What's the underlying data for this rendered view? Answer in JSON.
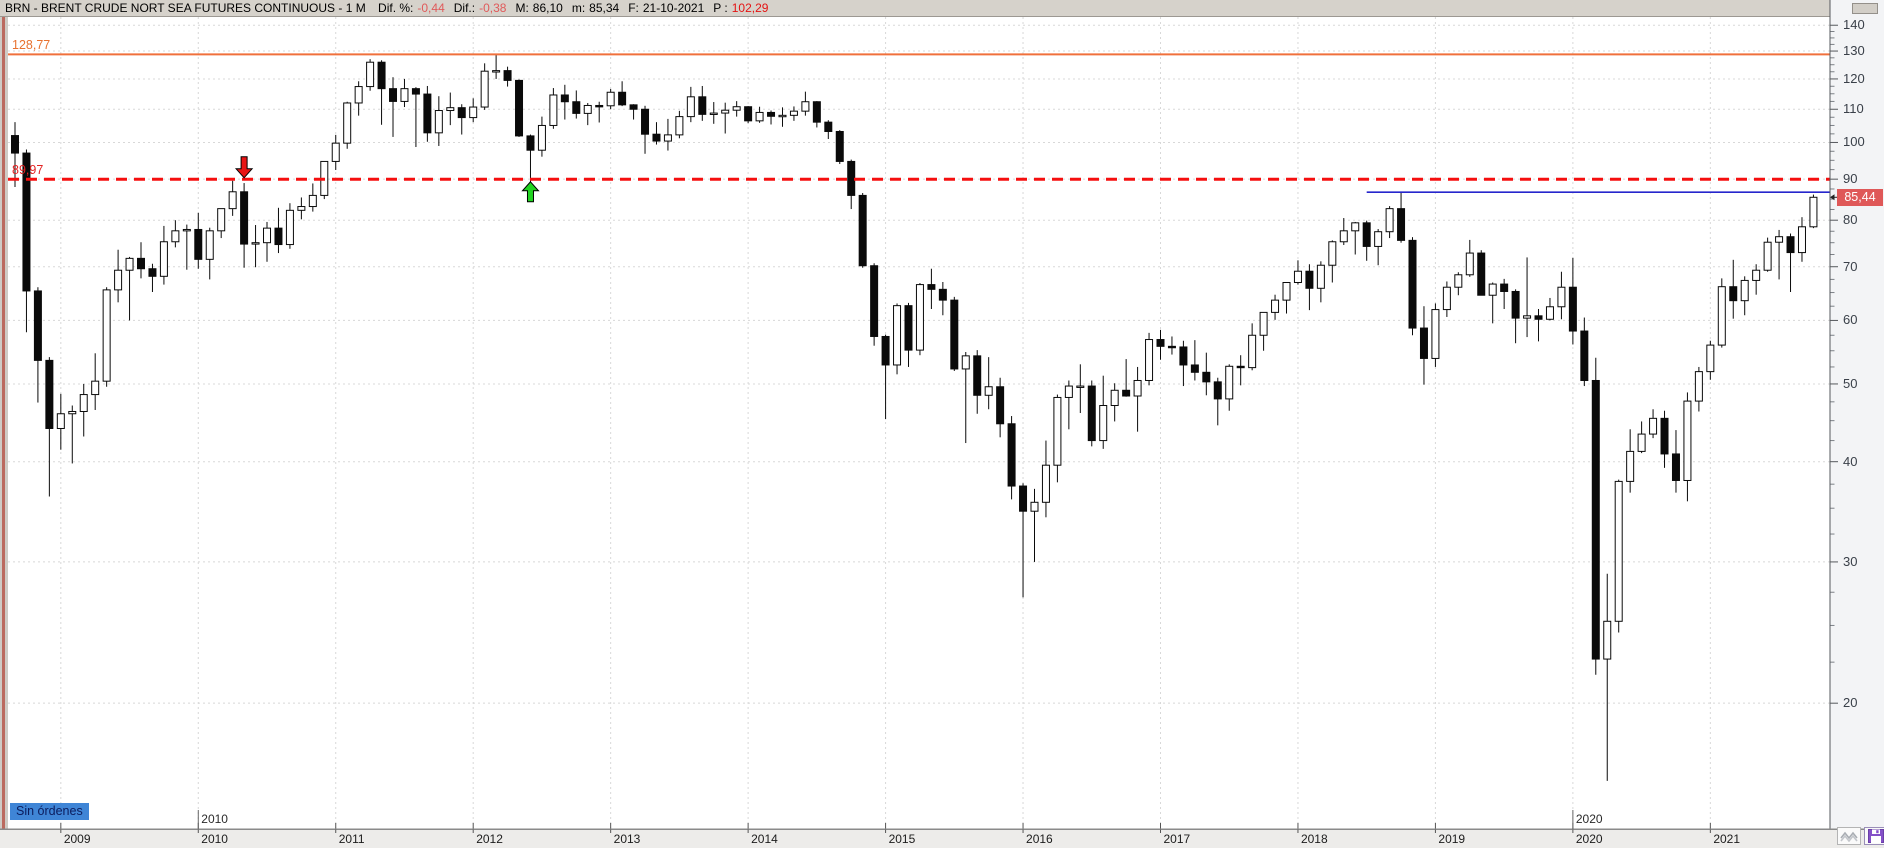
{
  "title_bar": {
    "title": "BRN - BRENT CRUDE NORT SEA FUTURES CONTINUOUS - 1 M",
    "segments": [
      {
        "label": "Dif. %:",
        "value": "-0,44",
        "tone": "red-soft"
      },
      {
        "label": "Dif.:",
        "value": "-0,38",
        "tone": "red-soft"
      },
      {
        "label": "M:",
        "value": "86,10",
        "tone": "plain"
      },
      {
        "label": "m:",
        "value": "85,34",
        "tone": "plain"
      },
      {
        "label": "F:",
        "value": "21-10-2021",
        "tone": "plain"
      },
      {
        "label": "P :",
        "value": "102,29",
        "tone": "red-strong"
      }
    ]
  },
  "status": {
    "no_orders": "Sin órdenes"
  },
  "price_badge": {
    "text": "85,44",
    "value": 85.44,
    "bg": "#df5858"
  },
  "y_axis": {
    "major_ticks": [
      140,
      130,
      120,
      110,
      100,
      90,
      80,
      70,
      60,
      50,
      40,
      30,
      20
    ],
    "minor_step": 2.5,
    "scale": "log"
  },
  "x_axis": {
    "years": [
      2009,
      2010,
      2011,
      2012,
      2013,
      2014,
      2015,
      2016,
      2017,
      2018,
      2019,
      2020,
      2021
    ]
  },
  "decade_labels": [
    {
      "text": "2010",
      "year": 2010
    },
    {
      "text": "2020",
      "year": 2020
    }
  ],
  "chart_data": {
    "type": "candlestick",
    "instrument": "BRN - Brent Crude North Sea Futures Continuous",
    "timeframe": "1 month",
    "ylim": [
      14,
      143
    ],
    "grid": true,
    "up_color": "#ffffff",
    "down_color": "#0a0a0a",
    "levels": [
      {
        "price": 128.77,
        "label": "128,77",
        "style": "solid",
        "color": "#f0703c",
        "from": "start"
      },
      {
        "price": 89.97,
        "label": "89,97",
        "style": "dashed",
        "color": "#f50f0f",
        "from": "start"
      },
      {
        "price": 86.7,
        "label": "",
        "style": "solid",
        "color": "#2626cc",
        "from": "2018-07"
      }
    ],
    "markers": [
      {
        "kind": "sell",
        "month": "2010-05",
        "color": "#e81414"
      },
      {
        "kind": "buy",
        "month": "2012-06",
        "color": "#21d421"
      }
    ],
    "last_price": 85.44,
    "candles": [
      [
        "2008-09",
        102,
        106,
        88,
        97
      ],
      [
        "2008-10",
        97,
        98,
        58,
        65.3
      ],
      [
        "2008-11",
        65.3,
        66,
        47.4,
        53.5
      ],
      [
        "2008-12",
        53.5,
        54,
        36.2,
        44
      ],
      [
        "2009-01",
        44,
        48.6,
        41.4,
        45.9
      ],
      [
        "2009-02",
        45.9,
        47,
        39.8,
        46.2
      ],
      [
        "2009-03",
        46.2,
        50,
        43,
        48.5
      ],
      [
        "2009-04",
        48.5,
        54.6,
        46.4,
        50.4
      ],
      [
        "2009-05",
        50.4,
        66,
        49.6,
        65.5
      ],
      [
        "2009-06",
        65.5,
        73.5,
        63.2,
        69.3
      ],
      [
        "2009-07",
        69.3,
        72,
        60,
        71.7
      ],
      [
        "2009-08",
        71.7,
        75.1,
        67.7,
        69.6
      ],
      [
        "2009-09",
        69.6,
        70.6,
        65.1,
        68.1
      ],
      [
        "2009-10",
        68.1,
        78.7,
        66.5,
        75.2
      ],
      [
        "2009-11",
        75.2,
        80,
        74,
        77.6
      ],
      [
        "2009-12",
        77.6,
        79,
        69.4,
        77.9
      ],
      [
        "2010-01",
        77.9,
        81.7,
        69.6,
        71.5
      ],
      [
        "2010-02",
        71.5,
        78.3,
        67.5,
        77.6
      ],
      [
        "2010-03",
        77.6,
        82.7,
        76,
        82.7
      ],
      [
        "2010-04",
        82.7,
        89.6,
        81,
        86.8
      ],
      [
        "2010-05",
        86.8,
        89,
        69.8,
        74.7
      ],
      [
        "2010-06",
        74.7,
        78.9,
        69.9,
        75
      ],
      [
        "2010-07",
        75,
        79.6,
        71,
        78.2
      ],
      [
        "2010-08",
        78.2,
        82.9,
        72.8,
        74.6
      ],
      [
        "2010-09",
        74.6,
        84,
        73.7,
        82.3
      ],
      [
        "2010-10",
        82.3,
        85.4,
        80.2,
        83.2
      ],
      [
        "2010-11",
        83.2,
        88.9,
        82,
        85.9
      ],
      [
        "2010-12",
        85.9,
        94.7,
        85,
        94.7
      ],
      [
        "2011-01",
        94.7,
        102.2,
        92.4,
        99.8
      ],
      [
        "2011-02",
        99.8,
        112.4,
        98.2,
        112
      ],
      [
        "2011-03",
        112,
        119.2,
        108,
        117.4
      ],
      [
        "2011-04",
        117.4,
        127,
        116,
        125.9
      ],
      [
        "2011-05",
        125.9,
        126.6,
        105.2,
        116.7
      ],
      [
        "2011-06",
        116.7,
        120.6,
        101.6,
        112.5
      ],
      [
        "2011-07",
        112.5,
        120,
        110.7,
        116.7
      ],
      [
        "2011-08",
        116.7,
        117.2,
        98.7,
        114.9
      ],
      [
        "2011-09",
        114.9,
        117.6,
        100.2,
        102.8
      ],
      [
        "2011-10",
        102.8,
        114.2,
        99,
        109.6
      ],
      [
        "2011-11",
        109.6,
        115.4,
        105.1,
        110.5
      ],
      [
        "2011-12",
        110.5,
        111.6,
        102.3,
        107.4
      ],
      [
        "2012-01",
        107.4,
        113.5,
        106,
        110.7
      ],
      [
        "2012-02",
        110.7,
        125.5,
        109.8,
        122.7
      ],
      [
        "2012-03",
        122.7,
        128.77,
        120,
        122.9
      ],
      [
        "2012-04",
        122.9,
        124.3,
        117.4,
        119.5
      ],
      [
        "2012-05",
        119.5,
        119.8,
        101.6,
        101.9
      ],
      [
        "2012-06",
        101.9,
        102.3,
        88.5,
        97.8
      ],
      [
        "2012-07",
        97.8,
        107.7,
        96,
        105
      ],
      [
        "2012-08",
        105,
        116.9,
        104,
        114.6
      ],
      [
        "2012-09",
        114.6,
        118,
        106.8,
        112.4
      ],
      [
        "2012-10",
        112.4,
        116.1,
        107.1,
        108.7
      ],
      [
        "2012-11",
        108.7,
        112,
        105.1,
        111.2
      ],
      [
        "2012-12",
        111.2,
        112.4,
        105.9,
        111.1
      ],
      [
        "2013-01",
        111.1,
        116.6,
        110,
        115.5
      ],
      [
        "2013-02",
        115.5,
        119.2,
        111,
        111.4
      ],
      [
        "2013-03",
        111.4,
        111.6,
        106.8,
        110
      ],
      [
        "2013-04",
        110,
        111.1,
        96.8,
        102.4
      ],
      [
        "2013-05",
        102.4,
        106,
        99.4,
        100.4
      ],
      [
        "2013-06",
        100.4,
        107,
        97.7,
        102.2
      ],
      [
        "2013-07",
        102.2,
        109.5,
        101.2,
        107.7
      ],
      [
        "2013-08",
        107.7,
        117.3,
        106,
        114
      ],
      [
        "2013-09",
        114,
        117.6,
        106.4,
        108.4
      ],
      [
        "2013-10",
        108.4,
        112.3,
        105.5,
        108.8
      ],
      [
        "2013-11",
        108.8,
        112.1,
        102.6,
        109.7
      ],
      [
        "2013-12",
        109.7,
        112.6,
        107.7,
        110.8
      ],
      [
        "2014-01",
        110.8,
        111,
        105.7,
        106.4
      ],
      [
        "2014-02",
        106.4,
        110.8,
        105.8,
        109
      ],
      [
        "2014-03",
        109,
        109.6,
        105.3,
        107.8
      ],
      [
        "2014-04",
        107.8,
        110.6,
        104.6,
        108.1
      ],
      [
        "2014-05",
        108.1,
        110.9,
        106.4,
        109.4
      ],
      [
        "2014-06",
        109.4,
        115.7,
        108,
        112.4
      ],
      [
        "2014-07",
        112.4,
        112.6,
        104.4,
        106
      ],
      [
        "2014-08",
        106,
        106.6,
        101,
        103.2
      ],
      [
        "2014-09",
        103.2,
        103.6,
        94,
        94.7
      ],
      [
        "2014-10",
        94.7,
        95.2,
        82.6,
        85.9
      ],
      [
        "2014-11",
        85.9,
        86.5,
        69.8,
        70.2
      ],
      [
        "2014-12",
        70.2,
        70.7,
        55.8,
        57.3
      ],
      [
        "2015-01",
        57.3,
        57.6,
        45.2,
        52.8
      ],
      [
        "2015-02",
        52.8,
        63,
        51.4,
        62.6
      ],
      [
        "2015-03",
        62.6,
        63.1,
        52.5,
        55.1
      ],
      [
        "2015-04",
        55.1,
        66.8,
        54.3,
        66.5
      ],
      [
        "2015-05",
        66.5,
        69.6,
        62,
        65.6
      ],
      [
        "2015-06",
        65.6,
        67,
        60.9,
        63.6
      ],
      [
        "2015-07",
        63.6,
        64.2,
        51.9,
        52.2
      ],
      [
        "2015-08",
        52.2,
        54.8,
        42.2,
        54.2
      ],
      [
        "2015-09",
        54.2,
        55.1,
        45.9,
        48.4
      ],
      [
        "2015-10",
        48.4,
        54,
        46.5,
        49.6
      ],
      [
        "2015-11",
        49.6,
        50.9,
        42.9,
        44.6
      ],
      [
        "2015-12",
        44.6,
        45.6,
        35.9,
        37.3
      ],
      [
        "2016-01",
        37.3,
        37.6,
        27.1,
        34.7
      ],
      [
        "2016-02",
        34.7,
        37,
        30,
        35.6
      ],
      [
        "2016-03",
        35.6,
        42.5,
        34.1,
        39.6
      ],
      [
        "2016-04",
        39.6,
        48.5,
        37.7,
        48.1
      ],
      [
        "2016-05",
        48.1,
        50.5,
        43.9,
        49.7
      ],
      [
        "2016-06",
        49.7,
        52.9,
        46,
        49.7
      ],
      [
        "2016-07",
        49.7,
        50.5,
        41.8,
        42.5
      ],
      [
        "2016-08",
        42.5,
        51.2,
        41.5,
        47
      ],
      [
        "2016-09",
        47,
        50.1,
        44.9,
        49.1
      ],
      [
        "2016-10",
        49.1,
        53.7,
        48.2,
        48.3
      ],
      [
        "2016-11",
        48.3,
        52.5,
        43.6,
        50.5
      ],
      [
        "2016-12",
        50.5,
        57.9,
        49.8,
        56.8
      ],
      [
        "2017-01",
        56.8,
        58.4,
        53.6,
        55.7
      ],
      [
        "2017-02",
        55.7,
        57.3,
        54.4,
        55.6
      ],
      [
        "2017-03",
        55.6,
        56.6,
        49.7,
        52.8
      ],
      [
        "2017-04",
        52.8,
        56.7,
        50.5,
        51.7
      ],
      [
        "2017-05",
        51.7,
        54.7,
        48.4,
        50.3
      ],
      [
        "2017-06",
        50.3,
        50.9,
        44.4,
        47.9
      ],
      [
        "2017-07",
        47.9,
        52.9,
        46.3,
        52.6
      ],
      [
        "2017-08",
        52.6,
        54.3,
        49.8,
        52.4
      ],
      [
        "2017-09",
        52.4,
        59.5,
        52,
        57.5
      ],
      [
        "2017-10",
        57.5,
        61.4,
        55,
        61.4
      ],
      [
        "2017-11",
        61.4,
        64.6,
        60.1,
        63.6
      ],
      [
        "2017-12",
        63.6,
        67,
        61.2,
        66.9
      ],
      [
        "2018-01",
        66.9,
        71.3,
        66.5,
        69.1
      ],
      [
        "2018-02",
        69.1,
        70.5,
        61.8,
        65.8
      ],
      [
        "2018-03",
        65.8,
        71.1,
        63.2,
        70.3
      ],
      [
        "2018-04",
        70.3,
        75.5,
        66.9,
        75.2
      ],
      [
        "2018-05",
        75.2,
        80.5,
        74.5,
        77.6
      ],
      [
        "2018-06",
        77.6,
        79.6,
        72.5,
        79.4
      ],
      [
        "2018-07",
        79.4,
        79.9,
        71.2,
        74.2
      ],
      [
        "2018-08",
        74.2,
        78,
        70.3,
        77.4
      ],
      [
        "2018-09",
        77.4,
        83.3,
        76,
        82.7
      ],
      [
        "2018-10",
        82.7,
        86.7,
        75,
        75.5
      ],
      [
        "2018-11",
        75.5,
        76.2,
        57.5,
        58.7
      ],
      [
        "2018-12",
        58.7,
        62.5,
        49.9,
        53.8
      ],
      [
        "2019-01",
        53.8,
        63,
        52.5,
        61.9
      ],
      [
        "2019-02",
        61.9,
        67.1,
        60.6,
        66
      ],
      [
        "2019-03",
        66,
        68.9,
        64.5,
        68.4
      ],
      [
        "2019-04",
        68.4,
        75.6,
        68,
        72.8
      ],
      [
        "2019-05",
        72.8,
        73.4,
        64.5,
        64.5
      ],
      [
        "2019-06",
        64.5,
        66.9,
        59.5,
        66.6
      ],
      [
        "2019-07",
        66.6,
        67.6,
        62,
        65.2
      ],
      [
        "2019-08",
        65.2,
        65.6,
        56.2,
        60.4
      ],
      [
        "2019-09",
        60.4,
        71.9,
        57.2,
        60.8
      ],
      [
        "2019-10",
        60.8,
        62,
        56.5,
        60.2
      ],
      [
        "2019-11",
        60.2,
        64,
        60,
        62.4
      ],
      [
        "2019-12",
        62.4,
        69,
        60.2,
        66
      ],
      [
        "2020-01",
        66,
        71.8,
        56,
        58.2
      ],
      [
        "2020-02",
        58.2,
        60.5,
        49.7,
        50.5
      ],
      [
        "2020-03",
        50.5,
        53.9,
        21.7,
        22.7
      ],
      [
        "2020-04",
        22.7,
        29,
        16,
        25.3
      ],
      [
        "2020-05",
        25.3,
        38,
        24.5,
        37.8
      ],
      [
        "2020-06",
        37.8,
        43.9,
        36.6,
        41.2
      ],
      [
        "2020-07",
        41.2,
        44.9,
        41,
        43.3
      ],
      [
        "2020-08",
        43.3,
        46.5,
        42.8,
        45.3
      ],
      [
        "2020-09",
        45.3,
        46.3,
        39.3,
        40.9
      ],
      [
        "2020-10",
        40.9,
        43.8,
        36.6,
        37.9
      ],
      [
        "2020-11",
        37.9,
        48.8,
        35.7,
        47.6
      ],
      [
        "2020-12",
        47.6,
        52.5,
        46.2,
        51.8
      ],
      [
        "2021-01",
        51.8,
        56.6,
        50.6,
        55.9
      ],
      [
        "2021-02",
        55.9,
        67.7,
        55.5,
        66.1
      ],
      [
        "2021-03",
        66.1,
        71.4,
        60.3,
        63.5
      ],
      [
        "2021-04",
        63.5,
        68.1,
        60.9,
        67.3
      ],
      [
        "2021-05",
        67.3,
        70.5,
        64.6,
        69.3
      ],
      [
        "2021-06",
        69.3,
        76.1,
        69,
        75.1
      ],
      [
        "2021-07",
        75.1,
        77.8,
        67.5,
        76.3
      ],
      [
        "2021-08",
        76.3,
        77,
        65.1,
        72.9
      ],
      [
        "2021-09",
        72.9,
        80.7,
        71,
        78.5
      ],
      [
        "2021-10",
        78.5,
        86.1,
        78.2,
        85.44
      ]
    ]
  }
}
